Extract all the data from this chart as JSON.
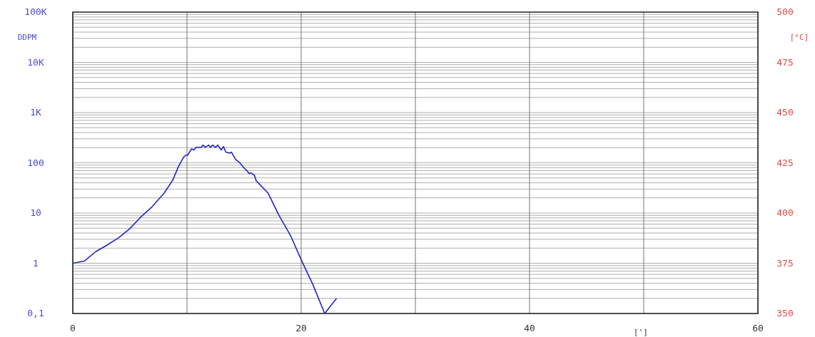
{
  "chart_data": {
    "type": "line",
    "xlabel": "[']",
    "ylabel": "DDPM",
    "y2label": "[°C]",
    "log": "y",
    "grid": true,
    "marker": "none",
    "line_style": "solid",
    "x": [
      0,
      1,
      2,
      3,
      4,
      5,
      5.9,
      6.9,
      8,
      8.75,
      9.25,
      9.7,
      9.9,
      10.06,
      10.4,
      10.6,
      10.8,
      11.25,
      11.4,
      11.6,
      11.9,
      12.06,
      12.25,
      12.5,
      12.7,
      13,
      13.2,
      13.4,
      13.75,
      13.9,
      14.25,
      14.56,
      14.9,
      15.3,
      15.45,
      15.6,
      15.9,
      16.06,
      17.1,
      18,
      19.06,
      20.06,
      21,
      22.06,
      23.1
    ],
    "series": [
      {
        "color": "#2323c8",
        "values": [
          1,
          1.1,
          1.7,
          2.3,
          3.2,
          4.9,
          8.1,
          13,
          25,
          45,
          84,
          129,
          142,
          142,
          190,
          180,
          203,
          203,
          225,
          203,
          225,
          203,
          225,
          203,
          225,
          180,
          210,
          163,
          156,
          163,
          117,
          103,
          84,
          67,
          61,
          63,
          57,
          44,
          25,
          9.5,
          3.6,
          1.1,
          0.39,
          0.1,
          0.2
        ]
      }
    ],
    "xlim": [
      0,
      60
    ],
    "xticks": [
      0,
      {
        "value": 10,
        "label": null
      },
      20,
      {
        "value": 30,
        "label": null
      },
      40,
      {
        "value": 50,
        "label": null
      },
      60
    ],
    "ylim": [
      0.1,
      100000
    ],
    "yticks": [
      {
        "value": 0.1,
        "label": "0,1"
      },
      1,
      10,
      100,
      {
        "value": 1000,
        "label": "1K"
      },
      {
        "value": 10000,
        "label": "10K"
      },
      {
        "value": 100000,
        "label": "100K"
      }
    ],
    "y2lim": [
      350,
      500
    ],
    "y2ticks": [
      350,
      375,
      400,
      425,
      450,
      475,
      500
    ]
  }
}
